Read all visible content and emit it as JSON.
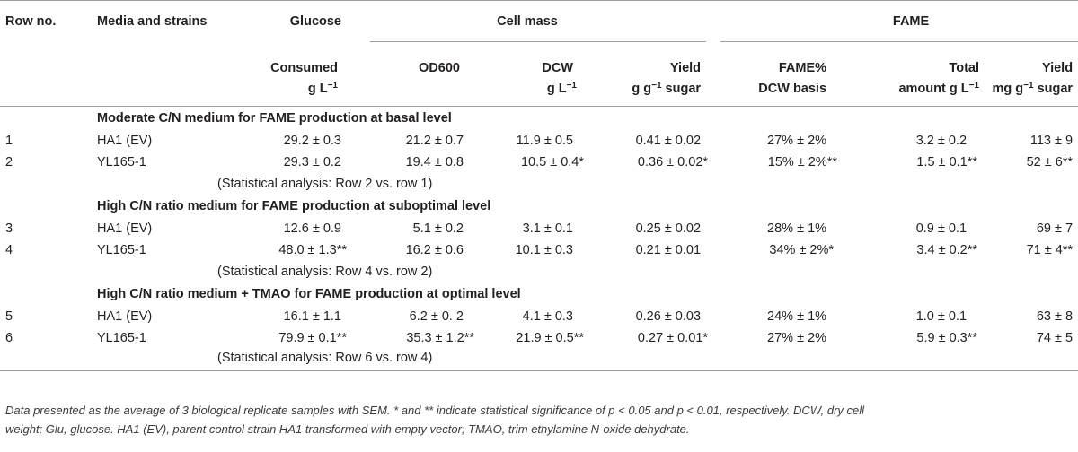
{
  "header": {
    "row1": {
      "row_no": "Row no.",
      "media": "Media and strains",
      "glucose": "Glucose",
      "cell_mass": "Cell mass",
      "fame": "FAME"
    },
    "row2": {
      "consumed": "Consumed",
      "od600": "OD600",
      "dcw": "DCW",
      "yield": "Yield",
      "fame_pct": "FAME%",
      "total": "Total",
      "yield2": "Yield"
    },
    "row3": {
      "glu_unit": "g L",
      "glu_exp": "−1",
      "dcw_unit": "g L",
      "dcw_exp": "−1",
      "yield_unit_a": "g g",
      "yield_unit_exp": "−1",
      "yield_unit_b": " sugar",
      "fame_basis": "DCW basis",
      "total_unit": "amount g L",
      "total_exp": "−1",
      "y2_unit_a": "mg g",
      "y2_exp": "−1",
      "y2_unit_b": " sugar"
    }
  },
  "sections": [
    {
      "title": "Moderate C/N medium for FAME production at basal level",
      "rows": [
        {
          "no": "1",
          "strain": "HA1 (EV)",
          "glucose": "29.2 ± 0.3",
          "od600": "21.2 ± 0.7",
          "dcw": "11.9 ± 0.5",
          "yield": "0.41 ± 0.02",
          "fame_pct": "27% ± 2%",
          "total": "3.2 ± 0.2",
          "yield_mg": "113 ± 9"
        },
        {
          "no": "2",
          "strain": "YL165-1",
          "glucose": "29.3 ± 0.2",
          "od600": "19.4 ± 0.8",
          "dcw": "10.5 ± 0.4*",
          "yield": "0.36 ± 0.02*",
          "fame_pct": "15% ± 2%**",
          "total": "1.5 ± 0.1**",
          "yield_mg": "52 ± 6**"
        }
      ],
      "note": "(Statistical analysis: Row 2 vs. row 1)"
    },
    {
      "title": "High C/N ratio medium for FAME production at suboptimal level",
      "rows": [
        {
          "no": "3",
          "strain": "HA1 (EV)",
          "glucose": "12.6 ± 0.9",
          "od600": "5.1 ± 0.2",
          "dcw": "3.1 ± 0.1",
          "yield": "0.25 ± 0.02",
          "fame_pct": "28% ± 1%",
          "total": "0.9 ± 0.1",
          "yield_mg": "69 ± 7"
        },
        {
          "no": "4",
          "strain": "YL165-1",
          "glucose": "48.0 ± 1.3**",
          "od600": "16.2 ± 0.6",
          "dcw": "10.1 ± 0.3",
          "yield": "0.21 ± 0.01",
          "fame_pct": "34% ± 2%*",
          "total": "3.4 ± 0.2**",
          "yield_mg": "71 ± 4**"
        }
      ],
      "note": "(Statistical analysis: Row 4 vs. row 2)"
    },
    {
      "title": "High C/N ratio medium + TMAO for FAME production at optimal level",
      "rows": [
        {
          "no": "5",
          "strain": "HA1 (EV)",
          "glucose": "16.1 ± 1.1",
          "od600": "6.2 ± 0. 2",
          "dcw": "4.1 ± 0.3",
          "yield": "0.26 ± 0.03",
          "fame_pct": "24% ± 1%",
          "total": "1.0 ± 0.1",
          "yield_mg": "63 ± 8"
        },
        {
          "no": "6",
          "strain": "YL165-1",
          "glucose": "79.9 ± 0.1**",
          "od600": "35.3 ± 1.2**",
          "dcw": "21.9 ± 0.5**",
          "yield": "0.27 ± 0.01*",
          "fame_pct": "27% ± 2%",
          "total": "5.9 ± 0.3**",
          "yield_mg": "74 ± 5"
        }
      ],
      "note": "(Statistical analysis: Row 6 vs. row 4)"
    }
  ],
  "footnote": {
    "line1": "Data presented as the average of 3 biological replicate samples with SEM. * and ** indicate statistical significance of p < 0.05 and p < 0.01, respectively. DCW, dry cell",
    "line2": "weight; Glu, glucose. HA1 (EV), parent control strain HA1 transformed with empty vector; TMAO, trim ethylamine N-oxide dehydrate."
  }
}
